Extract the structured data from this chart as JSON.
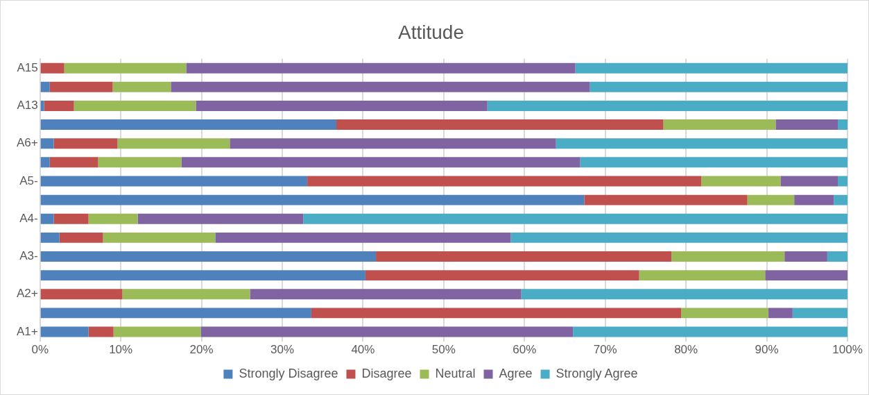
{
  "chart_data": {
    "type": "bar",
    "orientation": "horizontal",
    "stacked": true,
    "title": "Attitude",
    "categories": [
      "A15",
      null,
      "A13",
      null,
      "A6+",
      null,
      "A5-",
      null,
      "A4-",
      null,
      "A3-",
      null,
      "A2+",
      null,
      "A1+"
    ],
    "series": [
      {
        "name": "Strongly Disagree",
        "color": "#4f81bd",
        "values": [
          0,
          1.2,
          0.5,
          36.7,
          1.7,
          1.2,
          33.1,
          67.4,
          1.7,
          2.4,
          41.6,
          40.3,
          0,
          33.6,
          6.0
        ]
      },
      {
        "name": "Disagree",
        "color": "#c0504d",
        "values": [
          3.0,
          7.8,
          3.7,
          40.5,
          7.9,
          6.0,
          48.8,
          20.2,
          4.3,
          5.4,
          36.6,
          33.9,
          10.2,
          45.8,
          3.1
        ]
      },
      {
        "name": "Neutral",
        "color": "#9bbb59",
        "values": [
          15.1,
          7.2,
          15.1,
          13.9,
          13.9,
          10.3,
          9.8,
          5.8,
          6.1,
          13.9,
          14.0,
          15.6,
          15.8,
          10.8,
          10.8
        ]
      },
      {
        "name": "Agree",
        "color": "#8064a2",
        "values": [
          48.2,
          51.9,
          36.1,
          7.7,
          40.4,
          49.4,
          7.1,
          4.9,
          20.5,
          36.6,
          5.3,
          10.2,
          33.6,
          3.0,
          46.1
        ]
      },
      {
        "name": "Strongly Agree",
        "color": "#4bacc6",
        "values": [
          33.7,
          31.9,
          44.6,
          1.2,
          36.1,
          33.1,
          1.2,
          1.7,
          67.4,
          41.7,
          2.5,
          0,
          40.4,
          6.8,
          34.0
        ]
      }
    ],
    "xlim": [
      0,
      100
    ],
    "xticks": [
      {
        "value": 0,
        "label": "0%"
      },
      {
        "value": 10,
        "label": "10%"
      },
      {
        "value": 20,
        "label": "20%"
      },
      {
        "value": 30,
        "label": "30%"
      },
      {
        "value": 40,
        "label": "40%"
      },
      {
        "value": 50,
        "label": "50%"
      },
      {
        "value": 60,
        "label": "60%"
      },
      {
        "value": 70,
        "label": "70%"
      },
      {
        "value": 80,
        "label": "80%"
      },
      {
        "value": 90,
        "label": "90%"
      },
      {
        "value": 100,
        "label": "100%"
      }
    ],
    "grid": "x",
    "legend": "bottom"
  }
}
